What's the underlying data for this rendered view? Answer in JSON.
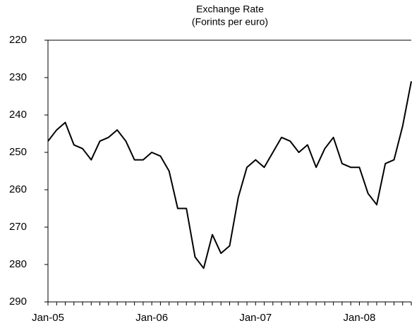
{
  "chart_data": {
    "type": "line",
    "title": "Exchange Rate",
    "subtitle": "(Forints per euro)",
    "categories": [
      "Jan-05",
      null,
      null,
      null,
      null,
      null,
      null,
      null,
      null,
      null,
      null,
      null,
      "Jan-06",
      null,
      null,
      null,
      null,
      null,
      null,
      null,
      null,
      null,
      null,
      null,
      "Jan-07",
      null,
      null,
      null,
      null,
      null,
      null,
      null,
      null,
      null,
      null,
      null,
      "Jan-08",
      null,
      null,
      null,
      null,
      null,
      null
    ],
    "series": [
      {
        "name": "Forints per euro",
        "color": "#000000",
        "values": [
          247,
          244,
          242,
          248,
          249,
          252,
          247,
          246,
          244,
          247,
          252,
          252,
          250,
          251,
          255,
          265,
          265,
          278,
          281,
          272,
          277,
          275,
          262,
          254,
          252,
          254,
          250,
          246,
          247,
          250,
          248,
          254,
          249,
          246,
          253,
          254,
          254,
          261,
          264,
          253,
          252,
          243,
          231
        ]
      }
    ],
    "ylim": [
      220,
      290
    ],
    "yticks": [
      220,
      230,
      240,
      250,
      260,
      270,
      280,
      290
    ],
    "y_inverted": true
  }
}
